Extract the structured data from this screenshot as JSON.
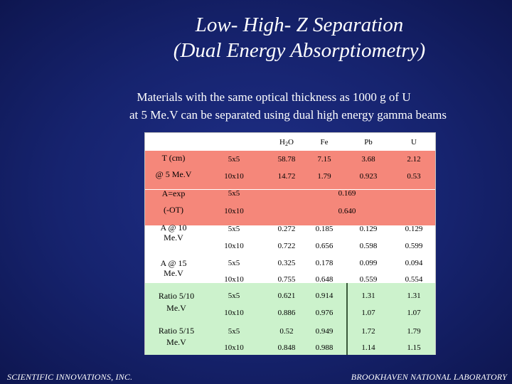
{
  "title": {
    "line1": "Low- High- Z Separation",
    "line2": "(Dual Energy Absorptiometry)"
  },
  "subtitle": {
    "line1": "Materials with the same optical thickness as 1000 g of U",
    "line2": "at 5 Me.V can be separated using dual high energy gamma beams"
  },
  "table": {
    "headers": [
      "H2O",
      "Fe",
      "Pb",
      "U"
    ],
    "sections": {
      "t": {
        "label1": "T (cm)",
        "label2": "@ 5 Me.V",
        "rows": [
          {
            "size": "5x5",
            "values": [
              "58.78",
              "7.15",
              "3.68",
              "2.12"
            ]
          },
          {
            "size": "10x10",
            "values": [
              "14.72",
              "1.79",
              "0.923",
              "0.53"
            ]
          }
        ]
      },
      "a": {
        "label1": "A=exp",
        "label2": "(-OT)",
        "rows": [
          {
            "size": "5x5",
            "value": "0.169"
          },
          {
            "size": "10x10",
            "value": "0.640"
          }
        ]
      },
      "a10": {
        "label1": "A @ 10",
        "label2": "Me.V",
        "rows": [
          {
            "size": "5x5",
            "values": [
              "0.272",
              "0.185",
              "0.129",
              "0.129"
            ]
          },
          {
            "size": "10x10",
            "values": [
              "0.722",
              "0.656",
              "0.598",
              "0.599"
            ]
          }
        ]
      },
      "a15": {
        "label1": "A @ 15",
        "label2": "Me.V",
        "rows": [
          {
            "size": "5x5",
            "values": [
              "0.325",
              "0.178",
              "0.099",
              "0.094"
            ]
          },
          {
            "size": "10x10",
            "values": [
              "0.755",
              "0.648",
              "0.559",
              "0.554"
            ]
          }
        ]
      },
      "r10": {
        "label1": "Ratio 5/10",
        "label2": "Me.V",
        "rows": [
          {
            "size": "5x5",
            "values": [
              "0.621",
              "0.914",
              "1.31",
              "1.31"
            ]
          },
          {
            "size": "10x10",
            "values": [
              "0.886",
              "0.976",
              "1.07",
              "1.07"
            ]
          }
        ]
      },
      "r15": {
        "label1": "Ratio 5/15",
        "label2": "Me.V",
        "rows": [
          {
            "size": "5x5",
            "values": [
              "0.52",
              "0.949",
              "1.72",
              "1.79"
            ]
          },
          {
            "size": "10x10",
            "values": [
              "0.848",
              "0.988",
              "1.14",
              "1.15"
            ]
          }
        ]
      }
    }
  },
  "footer": {
    "left": "SCIENTIFIC INNOVATIONS, INC.",
    "right": "BROOKHAVEN NATIONAL LABORATORY"
  },
  "colors": {
    "background": "#16236e",
    "pink": "#f5877a",
    "green": "#ccf2cc"
  }
}
